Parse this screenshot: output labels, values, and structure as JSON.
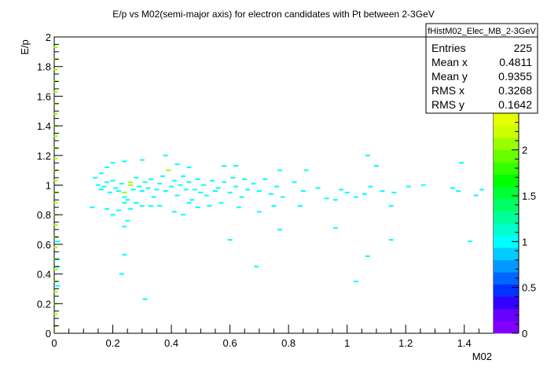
{
  "chart_data": {
    "type": "heatmap",
    "title": "E/p vs M02(semi-major axis) for electron candidates with Pt between 2-3GeV",
    "xlabel": "M02",
    "ylabel": "E/p",
    "xlim": [
      0,
      1.5
    ],
    "ylim": [
      0,
      2
    ],
    "xticks": [
      "0",
      "0.2",
      "0.4",
      "0.6",
      "0.8",
      "1",
      "1.2",
      "1.4"
    ],
    "yticks": [
      "0",
      "0.2",
      "0.4",
      "0.6",
      "0.8",
      "1",
      "1.2",
      "1.4",
      "1.6",
      "1.8",
      "2"
    ],
    "colorbar": {
      "range": [
        0,
        2.4
      ],
      "ticks": [
        "0",
        "0.5",
        "1",
        "1.5",
        "2"
      ],
      "palette": [
        "#8000ff",
        "#6600ff",
        "#3300ff",
        "#0033ff",
        "#0066ff",
        "#0099ff",
        "#00ccff",
        "#00ffff",
        "#00ffcc",
        "#00ff99",
        "#00ff66",
        "#00ff33",
        "#00ff00",
        "#33ff00",
        "#66ff00",
        "#99ff00",
        "#ccff00",
        "#e6ff00"
      ]
    },
    "points": [
      [
        0.004,
        1.93,
        2
      ],
      [
        0.004,
        1.85,
        2
      ],
      [
        0.004,
        1.78,
        2
      ],
      [
        0.004,
        1.7,
        2
      ],
      [
        0.004,
        1.63,
        2
      ],
      [
        0.004,
        1.55,
        2
      ],
      [
        0.004,
        1.48,
        2
      ],
      [
        0.004,
        1.4,
        2
      ],
      [
        0.004,
        1.33,
        2
      ],
      [
        0.004,
        1.25,
        2
      ],
      [
        0.004,
        1.18,
        2
      ],
      [
        0.004,
        1.1,
        2
      ],
      [
        0.004,
        1.03,
        2
      ],
      [
        0.004,
        0.95,
        2
      ],
      [
        0.004,
        0.88,
        2
      ],
      [
        0.004,
        0.8,
        2
      ],
      [
        0.004,
        0.73,
        2
      ],
      [
        0.004,
        0.65,
        2
      ],
      [
        0.004,
        0.58,
        2
      ],
      [
        0.004,
        0.5,
        2
      ],
      [
        0.004,
        0.43,
        2
      ],
      [
        0.004,
        0.35,
        2
      ],
      [
        0.004,
        0.28,
        2
      ],
      [
        0.004,
        0.2,
        2
      ],
      [
        0.004,
        0.13,
        2
      ],
      [
        0.004,
        0.05,
        2
      ],
      [
        0.012,
        0.62,
        1
      ],
      [
        0.012,
        0.5,
        1
      ],
      [
        0.012,
        0.45,
        1
      ],
      [
        0.012,
        0.32,
        1
      ],
      [
        0.14,
        1.05,
        1
      ],
      [
        0.16,
        1.08,
        1
      ],
      [
        0.18,
        1.12,
        1
      ],
      [
        0.2,
        1.15,
        1
      ],
      [
        0.24,
        1.16,
        1
      ],
      [
        0.3,
        1.17,
        1
      ],
      [
        0.38,
        1.2,
        1
      ],
      [
        0.42,
        1.14,
        1
      ],
      [
        0.46,
        1.12,
        1
      ],
      [
        0.58,
        1.13,
        1
      ],
      [
        0.62,
        1.13,
        1
      ],
      [
        0.77,
        1.1,
        1
      ],
      [
        0.86,
        1.1,
        1
      ],
      [
        1.07,
        1.2,
        1
      ],
      [
        1.1,
        1.13,
        1
      ],
      [
        1.39,
        1.15,
        1
      ],
      [
        0.15,
        1.0,
        1
      ],
      [
        0.16,
        0.97,
        1
      ],
      [
        0.17,
        0.99,
        1
      ],
      [
        0.18,
        1.02,
        1
      ],
      [
        0.19,
        0.95,
        1
      ],
      [
        0.2,
        1.03,
        1
      ],
      [
        0.21,
        0.98,
        1
      ],
      [
        0.22,
        0.96,
        1
      ],
      [
        0.23,
        1.01,
        1
      ],
      [
        0.24,
        0.92,
        1
      ],
      [
        0.25,
        0.9,
        1
      ],
      [
        0.26,
        1.0,
        2
      ],
      [
        0.26,
        1.02,
        2
      ],
      [
        0.24,
        0.95,
        2
      ],
      [
        0.27,
        0.97,
        1
      ],
      [
        0.28,
        1.05,
        1
      ],
      [
        0.29,
        0.99,
        1
      ],
      [
        0.3,
        0.96,
        1
      ],
      [
        0.31,
        1.02,
        1
      ],
      [
        0.32,
        0.98,
        1
      ],
      [
        0.33,
        1.04,
        1
      ],
      [
        0.34,
        0.92,
        1
      ],
      [
        0.35,
        0.97,
        1
      ],
      [
        0.36,
        1.01,
        1
      ],
      [
        0.37,
        1.06,
        1
      ],
      [
        0.38,
        0.96,
        1
      ],
      [
        0.39,
        1.1,
        2
      ],
      [
        0.4,
        0.99,
        1
      ],
      [
        0.41,
        1.03,
        1
      ],
      [
        0.42,
        0.93,
        1
      ],
      [
        0.43,
        1.0,
        1
      ],
      [
        0.44,
        1.06,
        1
      ],
      [
        0.45,
        0.97,
        1
      ],
      [
        0.46,
        1.02,
        1
      ],
      [
        0.47,
        0.9,
        1
      ],
      [
        0.48,
        0.97,
        1
      ],
      [
        0.49,
        1.04,
        1
      ],
      [
        0.5,
        0.95,
        1
      ],
      [
        0.51,
        1.0,
        1
      ],
      [
        0.52,
        0.93,
        1
      ],
      [
        0.54,
        1.03,
        1
      ],
      [
        0.55,
        0.96,
        1
      ],
      [
        0.56,
        0.98,
        1
      ],
      [
        0.58,
        1.02,
        1
      ],
      [
        0.6,
        0.95,
        1
      ],
      [
        0.61,
        1.05,
        1
      ],
      [
        0.62,
        0.99,
        1
      ],
      [
        0.64,
        0.92,
        1
      ],
      [
        0.65,
        1.04,
        1
      ],
      [
        0.66,
        0.97,
        1
      ],
      [
        0.68,
        1.01,
        1
      ],
      [
        0.7,
        0.96,
        1
      ],
      [
        0.72,
        1.04,
        1
      ],
      [
        0.74,
        0.94,
        1
      ],
      [
        0.76,
        0.99,
        1
      ],
      [
        0.78,
        0.92,
        1
      ],
      [
        0.82,
        1.02,
        1
      ],
      [
        0.85,
        0.96,
        1
      ],
      [
        0.9,
        0.98,
        1
      ],
      [
        0.93,
        0.91,
        1
      ],
      [
        0.98,
        0.97,
        1
      ],
      [
        1.0,
        0.95,
        1
      ],
      [
        1.03,
        0.92,
        1
      ],
      [
        1.06,
        0.94,
        1
      ],
      [
        1.08,
        0.99,
        1
      ],
      [
        1.12,
        0.96,
        1
      ],
      [
        1.16,
        0.95,
        1
      ],
      [
        1.21,
        0.99,
        1
      ],
      [
        1.26,
        1.0,
        1
      ],
      [
        1.36,
        0.98,
        1
      ],
      [
        1.38,
        0.96,
        1
      ],
      [
        1.46,
        0.97,
        1
      ],
      [
        0.13,
        0.85,
        1
      ],
      [
        0.18,
        0.84,
        1
      ],
      [
        0.2,
        0.8,
        1
      ],
      [
        0.22,
        0.83,
        1
      ],
      [
        0.24,
        0.88,
        1
      ],
      [
        0.25,
        0.76,
        1
      ],
      [
        0.26,
        0.84,
        1
      ],
      [
        0.28,
        0.88,
        1
      ],
      [
        0.3,
        0.86,
        1
      ],
      [
        0.33,
        0.86,
        1
      ],
      [
        0.36,
        0.86,
        1
      ],
      [
        0.41,
        0.82,
        1
      ],
      [
        0.44,
        0.8,
        1
      ],
      [
        0.46,
        0.88,
        1
      ],
      [
        0.49,
        0.85,
        1
      ],
      [
        0.53,
        0.86,
        1
      ],
      [
        0.57,
        0.88,
        1
      ],
      [
        0.63,
        0.85,
        1
      ],
      [
        0.7,
        0.82,
        1
      ],
      [
        0.75,
        0.86,
        1
      ],
      [
        0.84,
        0.86,
        1
      ],
      [
        0.96,
        0.9,
        1
      ],
      [
        1.15,
        0.86,
        1
      ],
      [
        1.44,
        0.93,
        1
      ],
      [
        0.24,
        0.72,
        1
      ],
      [
        0.24,
        0.53,
        1
      ],
      [
        0.6,
        0.63,
        1
      ],
      [
        0.77,
        0.7,
        1
      ],
      [
        0.96,
        0.71,
        1
      ],
      [
        1.07,
        0.52,
        1
      ],
      [
        1.15,
        0.63,
        1
      ],
      [
        1.42,
        0.62,
        1
      ],
      [
        0.23,
        0.4,
        1
      ],
      [
        0.69,
        0.45,
        1
      ],
      [
        1.03,
        0.35,
        1
      ],
      [
        0.31,
        0.23,
        1
      ]
    ]
  },
  "stats": {
    "name": "fHistM02_Elec_MB_2-3GeV",
    "rows": [
      {
        "label": "Entries",
        "value": "225"
      },
      {
        "label": "Mean x",
        "value": "0.4811"
      },
      {
        "label": "Mean y",
        "value": "0.9355"
      },
      {
        "label": "RMS x",
        "value": "0.3268"
      },
      {
        "label": "RMS y",
        "value": "0.1642"
      }
    ]
  }
}
